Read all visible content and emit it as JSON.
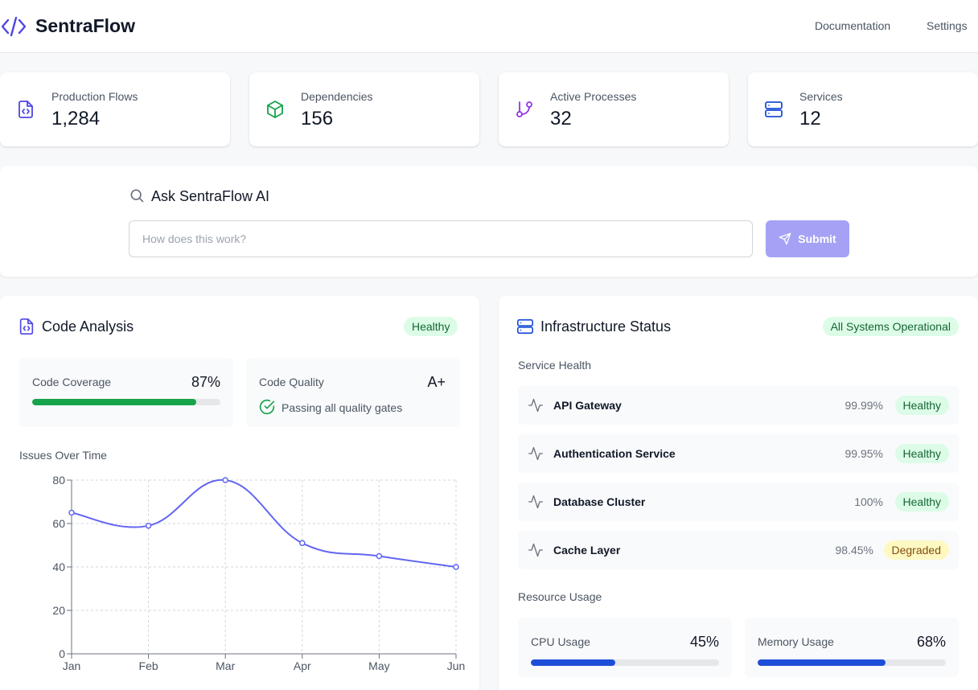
{
  "header": {
    "brand": "SentraFlow",
    "nav": {
      "documentation": "Documentation",
      "settings": "Settings"
    }
  },
  "stats": [
    {
      "label": "Production Flows",
      "value": "1,284",
      "icon": "file-code-icon",
      "color": "#4f46e5"
    },
    {
      "label": "Dependencies",
      "value": "156",
      "icon": "package-icon",
      "color": "#16a34a"
    },
    {
      "label": "Active Processes",
      "value": "32",
      "icon": "git-branch-icon",
      "color": "#9333ea"
    },
    {
      "label": "Services",
      "value": "12",
      "icon": "server-icon",
      "color": "#1d4ed8"
    }
  ],
  "ask": {
    "title": "Ask SentraFlow AI",
    "placeholder": "How does this work?",
    "submit_label": "Submit"
  },
  "code_analysis": {
    "title": "Code Analysis",
    "badge": "Healthy",
    "coverage": {
      "label": "Code Coverage",
      "value": "87%",
      "fraction": 0.87
    },
    "quality": {
      "label": "Code Quality",
      "value": "A+",
      "status": "Passing all quality gates"
    },
    "issues_label": "Issues Over Time"
  },
  "chart_data": {
    "type": "line",
    "categories": [
      "Jan",
      "Feb",
      "Mar",
      "Apr",
      "May",
      "Jun"
    ],
    "values": [
      65,
      59,
      80,
      51,
      45,
      40
    ],
    "ylim": [
      0,
      80
    ],
    "yticks": [
      0,
      20,
      40,
      60,
      80
    ],
    "grid": true,
    "color": "#6366f1"
  },
  "infrastructure": {
    "title": "Infrastructure Status",
    "badge": "All Systems Operational",
    "service_health_label": "Service Health",
    "services": [
      {
        "name": "API Gateway",
        "uptime": "99.99%",
        "status": "Healthy"
      },
      {
        "name": "Authentication Service",
        "uptime": "99.95%",
        "status": "Healthy"
      },
      {
        "name": "Database Cluster",
        "uptime": "100%",
        "status": "Healthy"
      },
      {
        "name": "Cache Layer",
        "uptime": "98.45%",
        "status": "Degraded"
      }
    ],
    "resource_label": "Resource Usage",
    "cpu": {
      "label": "CPU Usage",
      "value": "45%",
      "fraction": 0.45
    },
    "memory": {
      "label": "Memory Usage",
      "value": "68%",
      "fraction": 0.68
    }
  },
  "colors": {
    "accent": "#6366f1",
    "success": "#16a34a",
    "progress_blue": "#1d4ed8",
    "submit_bg": "#a5a2f5"
  }
}
